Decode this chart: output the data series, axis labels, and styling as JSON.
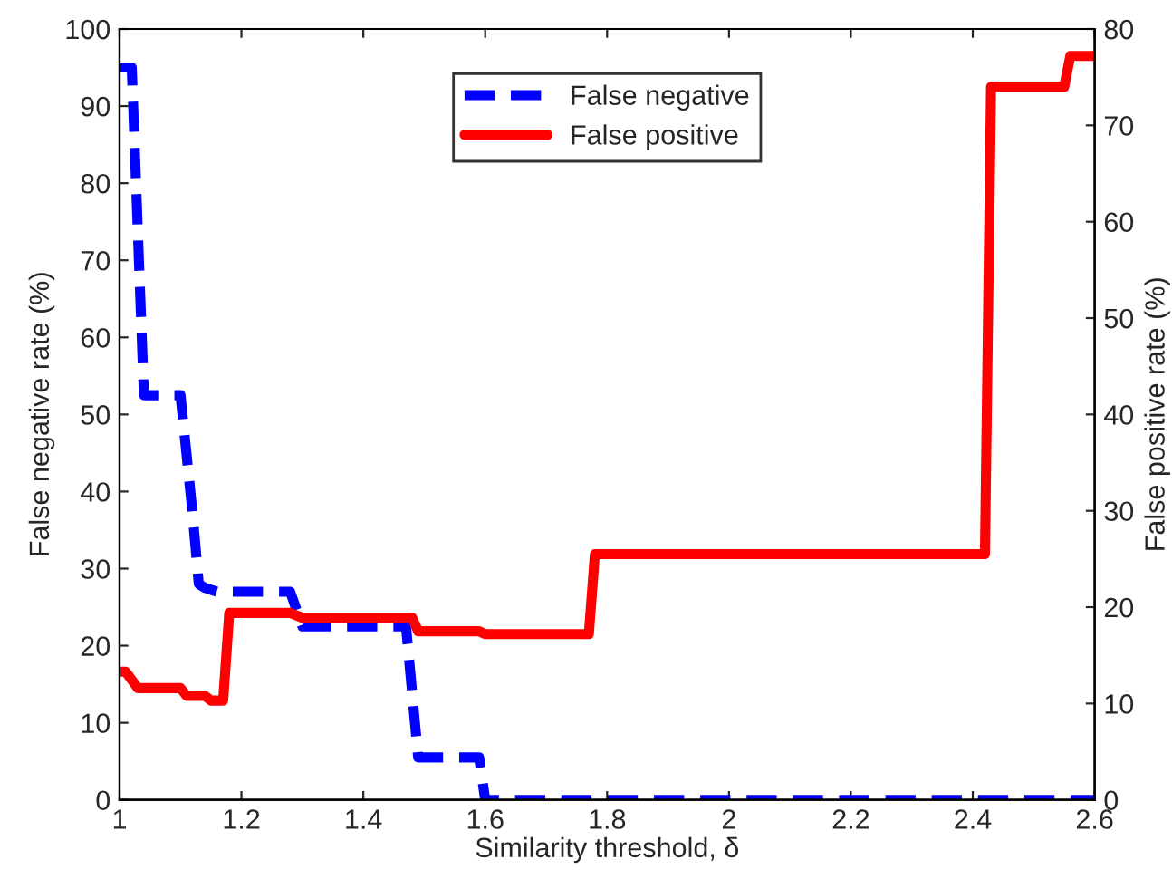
{
  "chart_data": {
    "type": "line",
    "xlabel": "Similarity threshold, δ",
    "ylabel": "False negative rate (%)",
    "y2label": "False positive rate (%)",
    "xlim": [
      1,
      2.6
    ],
    "xticks": [
      1,
      1.2,
      1.4,
      1.6,
      1.8,
      2,
      2.2,
      2.4,
      2.6
    ],
    "ylim": [
      0,
      100
    ],
    "yticks": [
      0,
      10,
      20,
      30,
      40,
      50,
      60,
      70,
      80,
      90,
      100
    ],
    "y2lim": [
      0,
      80
    ],
    "y2ticks": [
      0,
      10,
      20,
      30,
      40,
      50,
      60,
      70,
      80
    ],
    "grid": false,
    "legend": "top",
    "marker": "none",
    "series": [
      {
        "name": "False negative",
        "color": "#0000ff",
        "line_style": "dashed",
        "x": [
          1,
          1.02,
          1.04,
          1.1,
          1.12,
          1.13,
          1.14,
          1.16,
          1.28,
          1.3,
          1.47,
          1.49,
          1.59,
          1.6,
          2.6
        ],
        "values": [
          95,
          95,
          52.5,
          52.5,
          37,
          28,
          27.5,
          27,
          27,
          22.5,
          22.5,
          5.5,
          5.5,
          0,
          0
        ]
      },
      {
        "name": "False positive",
        "color": "#ff0000",
        "line_style": "solid",
        "axis": "y2",
        "x": [
          1,
          1.01,
          1.03,
          1.1,
          1.11,
          1.14,
          1.15,
          1.17,
          1.18,
          1.28,
          1.3,
          1.48,
          1.49,
          1.59,
          1.6,
          1.77,
          1.78,
          2.42,
          2.43,
          2.55,
          2.56,
          2.6
        ],
        "values": [
          13.3,
          13.3,
          11.6,
          11.6,
          10.8,
          10.8,
          10.3,
          10.3,
          19.4,
          19.4,
          18.9,
          18.9,
          17.5,
          17.5,
          17.2,
          17.2,
          25.5,
          25.5,
          74,
          74,
          77.2,
          77.2
        ]
      }
    ]
  }
}
